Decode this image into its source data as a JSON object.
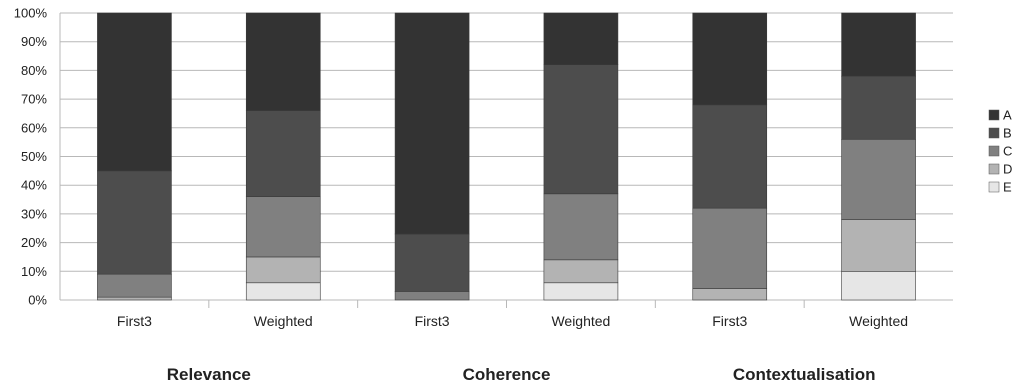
{
  "chart_data": {
    "type": "bar",
    "stacked": true,
    "normalized": true,
    "ylim": [
      0,
      100
    ],
    "yticks": [
      "0%",
      "10%",
      "20%",
      "30%",
      "40%",
      "50%",
      "60%",
      "70%",
      "80%",
      "90%",
      "100%"
    ],
    "categories": [
      "First3",
      "Weighted",
      "First3",
      "Weighted",
      "First3",
      "Weighted"
    ],
    "groups": [
      "Relevance",
      "Coherence",
      "Contextualisation"
    ],
    "legend_position": "right",
    "grid": true,
    "series": [
      {
        "name": "E",
        "color": "#e6e6e6",
        "values": [
          0,
          6,
          0,
          6,
          0,
          10
        ]
      },
      {
        "name": "D",
        "color": "#b3b3b3",
        "values": [
          1,
          9,
          0,
          8,
          4,
          18
        ]
      },
      {
        "name": "C",
        "color": "#808080",
        "values": [
          8,
          21,
          3,
          23,
          28,
          28
        ]
      },
      {
        "name": "B",
        "color": "#4d4d4d",
        "values": [
          36,
          30,
          20,
          45,
          36,
          22
        ]
      },
      {
        "name": "A",
        "color": "#333333",
        "values": [
          55,
          34,
          77,
          18,
          32,
          22
        ]
      }
    ]
  }
}
